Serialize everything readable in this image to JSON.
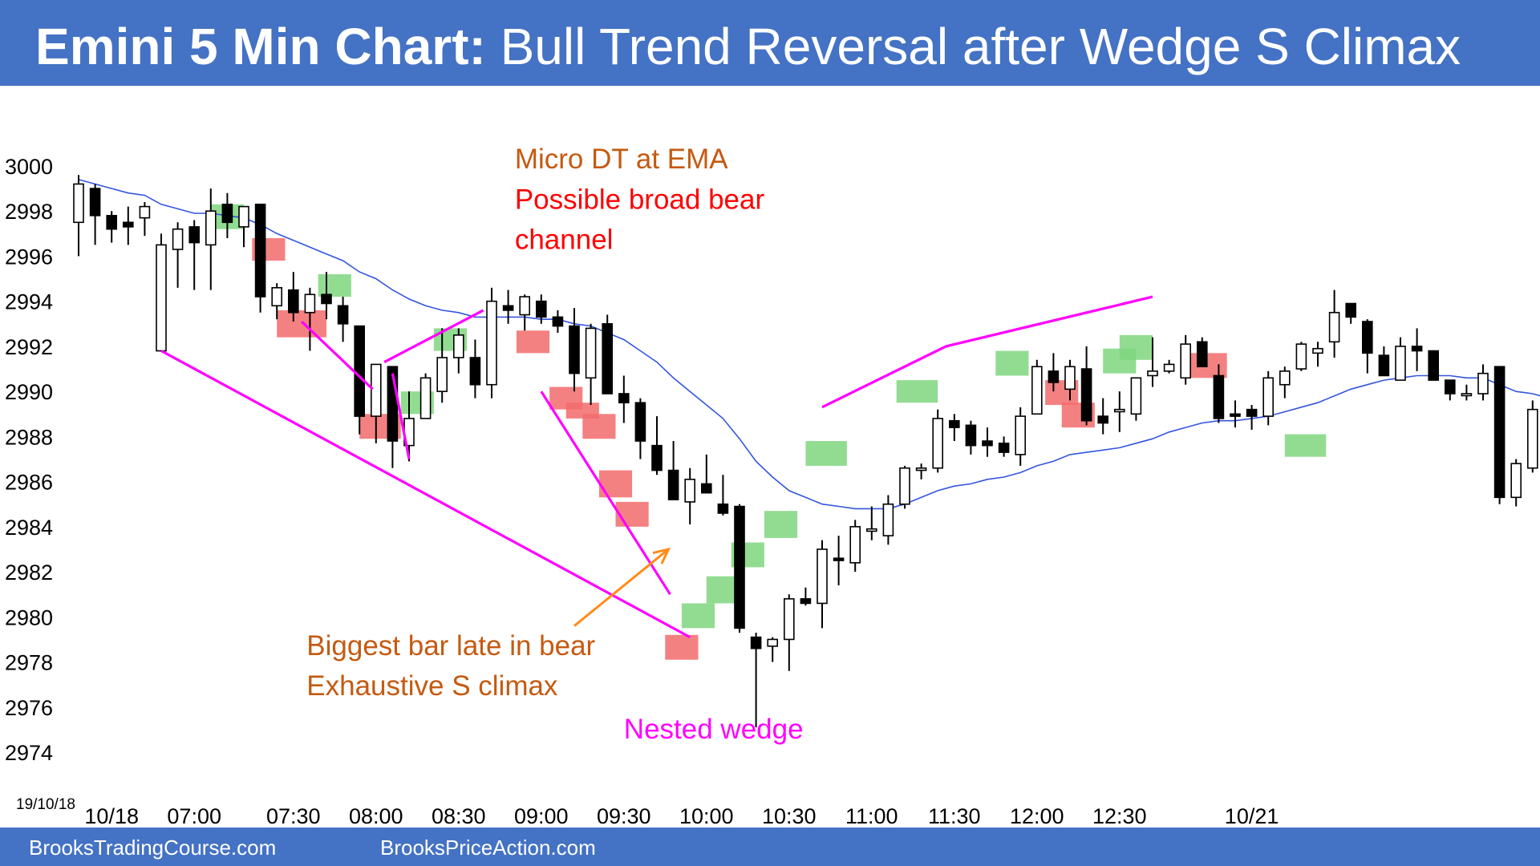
{
  "header": {
    "title_bold": "Emini 5 Min Chart:",
    "title_rest": " Bull Trend Reversal after Wedge S Climax"
  },
  "footer": {
    "left": "BrooksTradingCourse.com",
    "right": "BrooksPriceAction.com"
  },
  "colors": {
    "banner": "#4472c4",
    "bull_signal": "#7fd67f",
    "bear_signal": "#f26b6b",
    "ema": "#3355dd",
    "wedge": "#ff00ff",
    "annotation_orange": "#c55a11",
    "annotation_red": "#ff0000",
    "arrow": "#ff8c1a"
  },
  "chart_data": {
    "type": "candlestick",
    "title": "Emini 5 Min Chart: Bull Trend Reversal after Wedge S Climax",
    "date_label": "19/10/18",
    "ylim": [
      2974,
      3000
    ],
    "y_ticks": [
      3000,
      2998,
      2996,
      2994,
      2992,
      2990,
      2988,
      2986,
      2984,
      2982,
      2980,
      2978,
      2976,
      2974
    ],
    "x_ticks": [
      "10/18",
      "07:00",
      "07:30",
      "08:00",
      "08:30",
      "09:00",
      "09:30",
      "10:00",
      "10:30",
      "11:00",
      "11:30",
      "12:00",
      "12:30",
      "10/21"
    ],
    "x_tick_bar_index": [
      2,
      7,
      13,
      18,
      23,
      28,
      33,
      38,
      43,
      48,
      53,
      58,
      63,
      71
    ],
    "grid": false,
    "candles": [
      {
        "o": 2997.5,
        "h": 2999.6,
        "l": 2996.0,
        "c": 2999.2
      },
      {
        "o": 2999.0,
        "h": 2999.2,
        "l": 2996.5,
        "c": 2997.8
      },
      {
        "o": 2997.8,
        "h": 2998.0,
        "l": 2996.6,
        "c": 2997.2
      },
      {
        "o": 2997.5,
        "h": 2998.2,
        "l": 2996.5,
        "c": 2997.3
      },
      {
        "o": 2997.7,
        "h": 2998.4,
        "l": 2996.9,
        "c": 2998.2
      },
      {
        "o": 2991.8,
        "h": 2997.0,
        "l": 2991.8,
        "c": 2996.5
      },
      {
        "o": 2996.3,
        "h": 2997.5,
        "l": 2994.6,
        "c": 2997.2
      },
      {
        "o": 2997.3,
        "h": 2997.6,
        "l": 2994.5,
        "c": 2996.6
      },
      {
        "o": 2996.5,
        "h": 2999.0,
        "l": 2994.5,
        "c": 2998.0
      },
      {
        "o": 2998.3,
        "h": 2998.8,
        "l": 2996.8,
        "c": 2997.5
      },
      {
        "o": 2997.3,
        "h": 2998.2,
        "l": 2996.4,
        "c": 2998.2
      },
      {
        "o": 2998.3,
        "h": 2998.3,
        "l": 2993.5,
        "c": 2994.2
      },
      {
        "o": 2993.8,
        "h": 2994.8,
        "l": 2993.2,
        "c": 2994.6
      },
      {
        "o": 2994.5,
        "h": 2995.3,
        "l": 2993.1,
        "c": 2993.5
      },
      {
        "o": 2993.5,
        "h": 2994.6,
        "l": 2991.8,
        "c": 2994.3
      },
      {
        "o": 2994.3,
        "h": 2995.3,
        "l": 2993.2,
        "c": 2993.9
      },
      {
        "o": 2993.8,
        "h": 2994.2,
        "l": 2992.2,
        "c": 2993.0
      },
      {
        "o": 2992.9,
        "h": 2992.9,
        "l": 2988.1,
        "c": 2988.9
      },
      {
        "o": 2988.9,
        "h": 2991.2,
        "l": 2987.7,
        "c": 2991.2
      },
      {
        "o": 2991.1,
        "h": 2991.1,
        "l": 2986.6,
        "c": 2987.8
      },
      {
        "o": 2987.6,
        "h": 2990.0,
        "l": 2986.9,
        "c": 2988.8
      },
      {
        "o": 2988.8,
        "h": 2990.8,
        "l": 2988.8,
        "c": 2990.6
      },
      {
        "o": 2990.0,
        "h": 2992.8,
        "l": 2989.5,
        "c": 2991.5
      },
      {
        "o": 2991.5,
        "h": 2992.8,
        "l": 2990.8,
        "c": 2992.5
      },
      {
        "o": 2991.5,
        "h": 2992.3,
        "l": 2989.7,
        "c": 2990.3
      },
      {
        "o": 2990.3,
        "h": 2994.6,
        "l": 2989.7,
        "c": 2994.0
      },
      {
        "o": 2993.8,
        "h": 2994.5,
        "l": 2993.0,
        "c": 2993.6
      },
      {
        "o": 2993.4,
        "h": 2994.3,
        "l": 2992.7,
        "c": 2994.2
      },
      {
        "o": 2994.0,
        "h": 2994.3,
        "l": 2993.0,
        "c": 2993.3
      },
      {
        "o": 2993.3,
        "h": 2993.6,
        "l": 2992.6,
        "c": 2992.9
      },
      {
        "o": 2992.9,
        "h": 2993.7,
        "l": 2990.0,
        "c": 2990.8
      },
      {
        "o": 2990.6,
        "h": 2993.0,
        "l": 2989.4,
        "c": 2992.8
      },
      {
        "o": 2993.0,
        "h": 2993.4,
        "l": 2989.9,
        "c": 2989.9
      },
      {
        "o": 2989.9,
        "h": 2990.7,
        "l": 2988.6,
        "c": 2989.5
      },
      {
        "o": 2989.5,
        "h": 2989.7,
        "l": 2987.0,
        "c": 2987.8
      },
      {
        "o": 2987.6,
        "h": 2988.9,
        "l": 2986.3,
        "c": 2986.5
      },
      {
        "o": 2986.5,
        "h": 2987.8,
        "l": 2985.2,
        "c": 2985.2
      },
      {
        "o": 2985.1,
        "h": 2986.6,
        "l": 2984.1,
        "c": 2986.1
      },
      {
        "o": 2985.9,
        "h": 2987.2,
        "l": 2985.5,
        "c": 2985.5
      },
      {
        "o": 2985.0,
        "h": 2986.3,
        "l": 2984.5,
        "c": 2984.6
      },
      {
        "o": 2984.9,
        "h": 2985.0,
        "l": 2979.3,
        "c": 2979.5
      },
      {
        "o": 2979.1,
        "h": 2979.3,
        "l": 2975.1,
        "c": 2978.6
      },
      {
        "o": 2978.7,
        "h": 2979.1,
        "l": 2978.0,
        "c": 2979.0
      },
      {
        "o": 2979.0,
        "h": 2981.0,
        "l": 2977.6,
        "c": 2980.8
      },
      {
        "o": 2980.8,
        "h": 2981.3,
        "l": 2980.5,
        "c": 2980.6
      },
      {
        "o": 2980.6,
        "h": 2983.4,
        "l": 2979.5,
        "c": 2983.0
      },
      {
        "o": 2982.6,
        "h": 2983.6,
        "l": 2981.4,
        "c": 2982.5
      },
      {
        "o": 2982.4,
        "h": 2984.3,
        "l": 2982.0,
        "c": 2984.0
      },
      {
        "o": 2983.8,
        "h": 2984.9,
        "l": 2983.4,
        "c": 2983.9
      },
      {
        "o": 2983.6,
        "h": 2985.4,
        "l": 2983.2,
        "c": 2985.0
      },
      {
        "o": 2985.0,
        "h": 2986.7,
        "l": 2984.8,
        "c": 2986.6
      },
      {
        "o": 2986.5,
        "h": 2986.8,
        "l": 2986.1,
        "c": 2986.6
      },
      {
        "o": 2986.6,
        "h": 2989.2,
        "l": 2986.4,
        "c": 2988.8
      },
      {
        "o": 2988.7,
        "h": 2989.0,
        "l": 2987.8,
        "c": 2988.4
      },
      {
        "o": 2988.5,
        "h": 2988.7,
        "l": 2987.2,
        "c": 2987.6
      },
      {
        "o": 2987.8,
        "h": 2988.4,
        "l": 2987.1,
        "c": 2987.6
      },
      {
        "o": 2987.7,
        "h": 2988.0,
        "l": 2987.1,
        "c": 2987.3
      },
      {
        "o": 2987.2,
        "h": 2989.3,
        "l": 2986.7,
        "c": 2988.9
      },
      {
        "o": 2989.0,
        "h": 2991.4,
        "l": 2989.0,
        "c": 2991.1
      },
      {
        "o": 2990.9,
        "h": 2991.7,
        "l": 2990.0,
        "c": 2990.4
      },
      {
        "o": 2990.1,
        "h": 2991.4,
        "l": 2989.6,
        "c": 2991.1
      },
      {
        "o": 2991.0,
        "h": 2992.0,
        "l": 2988.5,
        "c": 2988.7
      },
      {
        "o": 2988.9,
        "h": 2989.7,
        "l": 2988.1,
        "c": 2988.6
      },
      {
        "o": 2989.1,
        "h": 2990.0,
        "l": 2988.2,
        "c": 2989.2
      },
      {
        "o": 2989.0,
        "h": 2990.6,
        "l": 2988.7,
        "c": 2990.6
      },
      {
        "o": 2990.7,
        "h": 2992.4,
        "l": 2990.2,
        "c": 2990.9
      },
      {
        "o": 2990.9,
        "h": 2991.4,
        "l": 2990.8,
        "c": 2991.2
      },
      {
        "o": 2990.6,
        "h": 2992.5,
        "l": 2990.3,
        "c": 2992.1
      },
      {
        "o": 2992.2,
        "h": 2992.4,
        "l": 2991.1,
        "c": 2991.1
      },
      {
        "o": 2990.7,
        "h": 2991.2,
        "l": 2988.6,
        "c": 2988.8
      },
      {
        "o": 2989.0,
        "h": 2989.6,
        "l": 2988.4,
        "c": 2988.9
      },
      {
        "o": 2989.2,
        "h": 2989.4,
        "l": 2988.3,
        "c": 2988.9
      },
      {
        "o": 2988.9,
        "h": 2990.9,
        "l": 2988.5,
        "c": 2990.6
      },
      {
        "o": 2990.3,
        "h": 2991.1,
        "l": 2989.7,
        "c": 2990.9
      },
      {
        "o": 2991.0,
        "h": 2992.2,
        "l": 2990.9,
        "c": 2992.1
      },
      {
        "o": 2991.7,
        "h": 2992.2,
        "l": 2991.1,
        "c": 2991.9
      },
      {
        "o": 2992.2,
        "h": 2994.5,
        "l": 2991.5,
        "c": 2993.5
      },
      {
        "o": 2993.9,
        "h": 2993.9,
        "l": 2993.0,
        "c": 2993.3
      },
      {
        "o": 2993.1,
        "h": 2993.2,
        "l": 2990.8,
        "c": 2991.7
      },
      {
        "o": 2991.6,
        "h": 2992.0,
        "l": 2990.7,
        "c": 2990.7
      },
      {
        "o": 2990.5,
        "h": 2992.4,
        "l": 2990.5,
        "c": 2992.0
      },
      {
        "o": 2992.0,
        "h": 2992.8,
        "l": 2990.9,
        "c": 2991.8
      },
      {
        "o": 2991.8,
        "h": 2991.8,
        "l": 2990.5,
        "c": 2990.5
      },
      {
        "o": 2990.5,
        "h": 2990.5,
        "l": 2989.6,
        "c": 2989.9
      },
      {
        "o": 2989.9,
        "h": 2990.3,
        "l": 2989.6,
        "c": 2989.9
      },
      {
        "o": 2989.9,
        "h": 2991.2,
        "l": 2989.6,
        "c": 2990.8
      },
      {
        "o": 2991.1,
        "h": 2991.1,
        "l": 2985.0,
        "c": 2985.3
      },
      {
        "o": 2985.3,
        "h": 2987.0,
        "l": 2984.9,
        "c": 2986.8
      },
      {
        "o": 2986.6,
        "h": 2989.6,
        "l": 2986.4,
        "c": 2989.2
      },
      {
        "o": 2989.2,
        "h": 2989.3,
        "l": 2988.0,
        "c": 2988.2
      }
    ],
    "ema": [
      2999.4,
      2999.2,
      2999.0,
      2998.8,
      2998.7,
      2998.3,
      2998.1,
      2997.9,
      2997.9,
      2997.8,
      2997.7,
      2997.4,
      2997.0,
      2996.7,
      2996.4,
      2996.1,
      2995.8,
      2995.3,
      2995.0,
      2994.5,
      2994.1,
      2993.8,
      2993.6,
      2993.5,
      2993.3,
      2993.3,
      2993.3,
      2993.3,
      2993.2,
      2993.2,
      2993.0,
      2992.9,
      2992.6,
      2992.3,
      2991.8,
      2991.3,
      2990.6,
      2990.0,
      2989.4,
      2988.8,
      2987.9,
      2986.9,
      2986.2,
      2985.6,
      2985.3,
      2985.0,
      2984.9,
      2984.8,
      2984.8,
      2984.8,
      2985.0,
      2985.3,
      2985.6,
      2985.8,
      2985.9,
      2986.1,
      2986.2,
      2986.4,
      2986.7,
      2986.9,
      2987.2,
      2987.3,
      2987.4,
      2987.5,
      2987.7,
      2987.9,
      2988.2,
      2988.4,
      2988.6,
      2988.7,
      2988.7,
      2988.8,
      2988.9,
      2989.1,
      2989.3,
      2989.5,
      2989.8,
      2990.1,
      2990.3,
      2990.5,
      2990.6,
      2990.7,
      2990.7,
      2990.7,
      2990.6,
      2990.6,
      2990.3,
      2990.0,
      2989.9,
      2989.7
    ],
    "signal_boxes": [
      {
        "type": "bull",
        "bar": [
          8,
          10
        ],
        "y": [
          2997.2,
          2998.3
        ]
      },
      {
        "type": "bear",
        "bar": [
          10.5,
          12.5
        ],
        "y": [
          2995.8,
          2996.8
        ]
      },
      {
        "type": "bear",
        "bar": [
          12,
          15
        ],
        "y": [
          2992.4,
          2993.6
        ]
      },
      {
        "type": "bull",
        "bar": [
          14.5,
          16.5
        ],
        "y": [
          2994.2,
          2995.2
        ]
      },
      {
        "type": "bear",
        "bar": [
          17,
          19.5
        ],
        "y": [
          2987.9,
          2989.0
        ]
      },
      {
        "type": "bull",
        "bar": [
          19.5,
          21.5
        ],
        "y": [
          2989.0,
          2990.0
        ]
      },
      {
        "type": "bull",
        "bar": [
          21.5,
          23.5
        ],
        "y": [
          2991.8,
          2992.8
        ]
      },
      {
        "type": "bear",
        "bar": [
          26.5,
          28.5
        ],
        "y": [
          2991.7,
          2992.7
        ]
      },
      {
        "type": "bear",
        "bar": [
          28.5,
          30.5
        ],
        "y": [
          2989.2,
          2990.2
        ]
      },
      {
        "type": "bear",
        "bar": [
          29.5,
          31.5
        ],
        "y": [
          2988.8,
          2989.5
        ]
      },
      {
        "type": "bear",
        "bar": [
          30.5,
          32.5
        ],
        "y": [
          2987.9,
          2989.0
        ]
      },
      {
        "type": "bear",
        "bar": [
          31.5,
          33.5
        ],
        "y": [
          2985.3,
          2986.5
        ]
      },
      {
        "type": "bear",
        "bar": [
          32.5,
          34.5
        ],
        "y": [
          2984.0,
          2985.1
        ]
      },
      {
        "type": "bear",
        "bar": [
          35.5,
          37.5
        ],
        "y": [
          2978.1,
          2979.2
        ]
      },
      {
        "type": "bull",
        "bar": [
          36.5,
          38.5
        ],
        "y": [
          2979.5,
          2980.6
        ]
      },
      {
        "type": "bull",
        "bar": [
          38,
          40
        ],
        "y": [
          2980.6,
          2981.8
        ]
      },
      {
        "type": "bull",
        "bar": [
          39.5,
          41.5
        ],
        "y": [
          2982.2,
          2983.3
        ]
      },
      {
        "type": "bull",
        "bar": [
          41.5,
          43.5
        ],
        "y": [
          2983.5,
          2984.7
        ]
      },
      {
        "type": "bull",
        "bar": [
          44,
          46.5
        ],
        "y": [
          2986.7,
          2987.8
        ]
      },
      {
        "type": "bull",
        "bar": [
          49.5,
          52
        ],
        "y": [
          2989.5,
          2990.5
        ]
      },
      {
        "type": "bull",
        "bar": [
          55.5,
          57.5
        ],
        "y": [
          2990.7,
          2991.8
        ]
      },
      {
        "type": "bear",
        "bar": [
          58.5,
          60.5
        ],
        "y": [
          2989.4,
          2990.5
        ]
      },
      {
        "type": "bear",
        "bar": [
          59.5,
          61.5
        ],
        "y": [
          2988.4,
          2989.5
        ]
      },
      {
        "type": "bull",
        "bar": [
          62,
          64
        ],
        "y": [
          2990.8,
          2991.9
        ]
      },
      {
        "type": "bull",
        "bar": [
          63,
          65
        ],
        "y": [
          2991.4,
          2992.5
        ]
      },
      {
        "type": "bear",
        "bar": [
          67,
          69.5
        ],
        "y": [
          2990.6,
          2991.7
        ]
      },
      {
        "type": "bull",
        "bar": [
          73,
          75.5
        ],
        "y": [
          2987.1,
          2988.1
        ]
      }
    ],
    "wedge_lines": [
      {
        "bar": [
          5,
          37
        ],
        "y": [
          2991.8,
          2979.1
        ]
      },
      {
        "bar": [
          19,
          20
        ],
        "y": [
          2990.8,
          2987.0
        ]
      },
      {
        "bar": [
          13.5,
          17.8
        ],
        "y": [
          2993.1,
          2990.1
        ]
      },
      {
        "bar": [
          18.5,
          24.5
        ],
        "y": [
          2991.3,
          2993.6
        ]
      },
      {
        "bar": [
          28,
          35.8
        ],
        "y": [
          2990.0,
          2981.0
        ]
      },
      {
        "bar": [
          45,
          52.5,
          65
        ],
        "y": [
          2989.3,
          2992.0,
          2994.2
        ]
      }
    ],
    "arrow": {
      "from_bar": 30,
      "from_y": 2979.6,
      "to_bar": 35.7,
      "to_y": 2983.0
    },
    "annotations": [
      {
        "lines": [
          "Micro DT at EMA"
        ],
        "color": "orange",
        "bar": 26.4,
        "y": 2999.9
      },
      {
        "lines": [
          "Possible broad bear",
          "channel"
        ],
        "color": "red",
        "bar": 26.4,
        "y": 2998.1
      },
      {
        "lines": [
          "Biggest bar late in bear",
          "Exhaustive S climax"
        ],
        "color": "orange",
        "bar": 13.8,
        "y": 2978.3
      },
      {
        "lines": [
          "Nested wedge"
        ],
        "color": "magenta",
        "bar": 33,
        "y": 2974.6
      }
    ]
  }
}
